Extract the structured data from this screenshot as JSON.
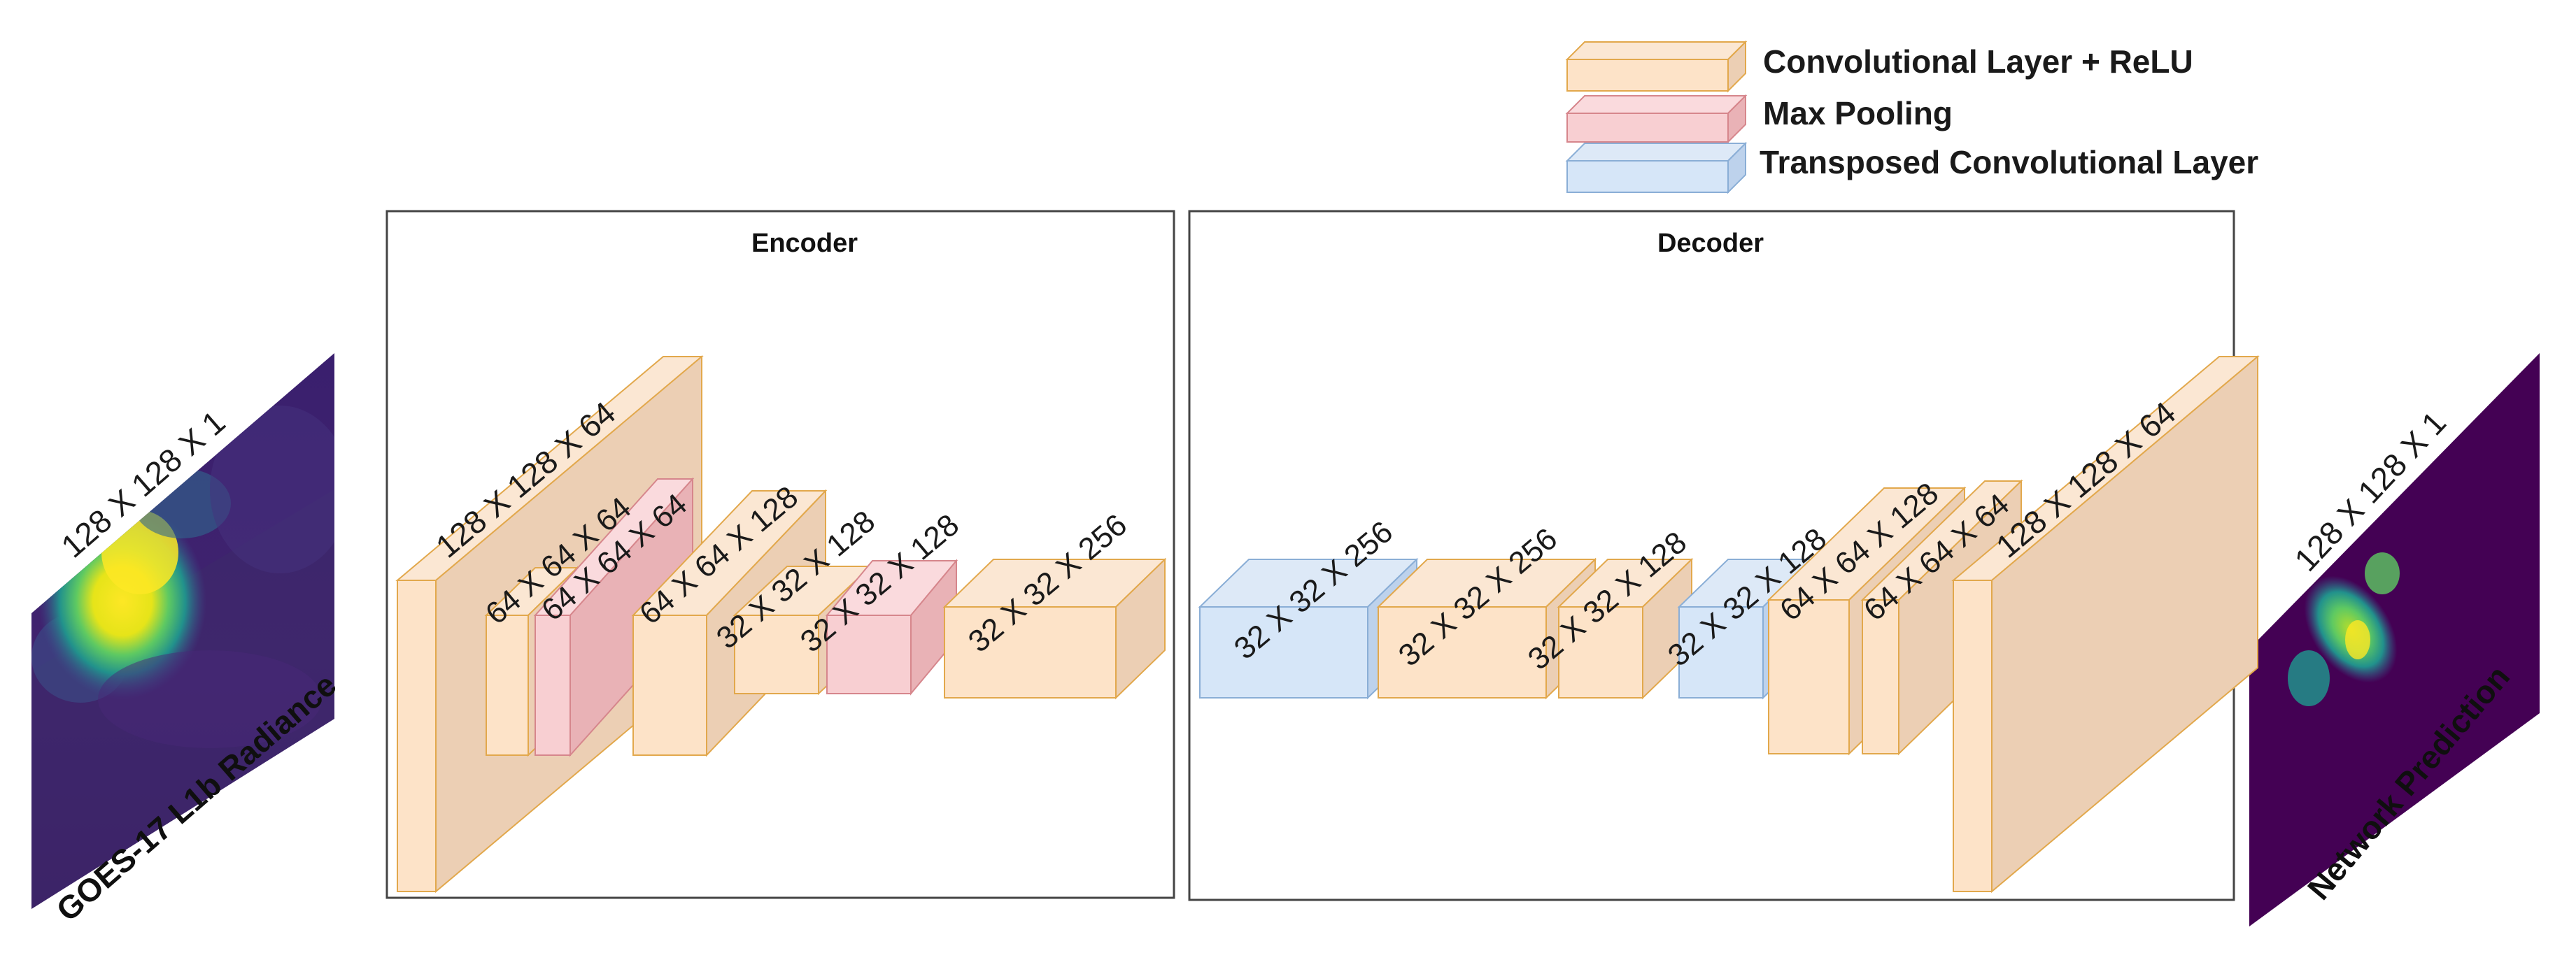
{
  "legend": {
    "conv": "Convolutional Layer + ReLU",
    "pool": "Max Pooling",
    "tconv": "Transposed Convolutional Layer"
  },
  "encoder": {
    "title": "Encoder",
    "layers": [
      {
        "type": "conv",
        "label": "128 X 128 X 64"
      },
      {
        "type": "conv",
        "label": "64 X 64 X 64"
      },
      {
        "type": "pool",
        "label": "64 X 64 X 64"
      },
      {
        "type": "conv",
        "label": "64 X 64 X 128"
      },
      {
        "type": "conv",
        "label": "32 X 32 X 128"
      },
      {
        "type": "pool",
        "label": "32 X 32 X 128"
      },
      {
        "type": "conv",
        "label": "32 X 32 X 256"
      }
    ]
  },
  "decoder": {
    "title": "Decoder",
    "layers": [
      {
        "type": "tconv",
        "label": "32 X 32 X 256"
      },
      {
        "type": "conv",
        "label": "32 X 32 X 256"
      },
      {
        "type": "conv",
        "label": "32 X 32 X 128"
      },
      {
        "type": "tconv",
        "label": "32 X 32 X 128"
      },
      {
        "type": "conv",
        "label": "64 X 64 X 128"
      },
      {
        "type": "conv",
        "label": "64 X 64 X 64"
      },
      {
        "type": "conv",
        "label": "128 X 128 X 64"
      }
    ]
  },
  "input": {
    "shape": "128 X 128 X 1",
    "caption": "GOES-17 L1b Radiance"
  },
  "output": {
    "shape": "128 X 128 X 1",
    "caption": "Network Prediction"
  },
  "colors": {
    "conv_front": "#fde3c8",
    "conv_side": "#eccfb4",
    "conv_top": "#fbe7d3",
    "conv_stroke": "#e2a84c",
    "pool_front": "#f8cfd2",
    "pool_side": "#e9b2b6",
    "pool_top": "#fadadd",
    "pool_stroke": "#d6868c",
    "tconv_front": "#d6e6f8",
    "tconv_side": "#bdd2ec",
    "tconv_top": "#dde9f7",
    "tconv_stroke": "#8aaed6",
    "viridis_dark": "#440154",
    "viridis_yellow": "#fde725"
  }
}
